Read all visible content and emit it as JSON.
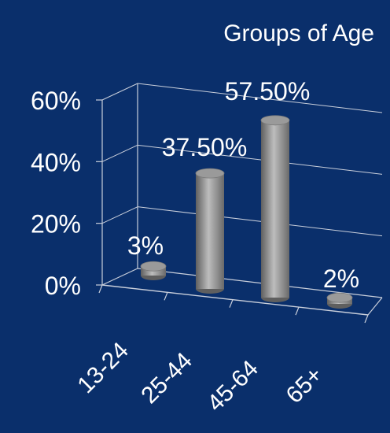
{
  "chart_data": {
    "type": "bar",
    "title": "Groups of Age",
    "categories": [
      "13-24",
      "25-44",
      "45-64",
      "65+"
    ],
    "values": [
      3,
      37.5,
      57.5,
      2
    ],
    "data_labels": [
      "3%",
      "37.50%",
      "57.50%",
      "2%"
    ],
    "ylim": [
      0,
      60
    ],
    "yticks": [
      0,
      20,
      40,
      60
    ],
    "ytick_labels": [
      "0%",
      "20%",
      "40%",
      "60%"
    ],
    "xlabel": "",
    "ylabel": "",
    "grid": true,
    "legend": "none",
    "style": "3d-cylinder"
  },
  "colors": {
    "background": "#0a2f6b",
    "text": "#ffffff",
    "gridline": "#c9cfdb",
    "bar_dark": "#5f5f5f",
    "bar_light": "#bdbdbd",
    "bar_top": "#9a9a9a"
  }
}
